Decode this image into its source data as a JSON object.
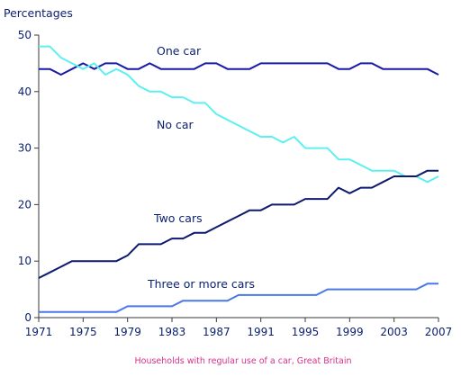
{
  "chart_data": {
    "type": "line",
    "title": "",
    "ylabel": "Percentages",
    "xlabel": "",
    "caption": "Households with regular use of a car, Great Britain",
    "xlim": [
      1971,
      2007
    ],
    "ylim": [
      0,
      50
    ],
    "x_ticks": [
      1971,
      1975,
      1979,
      1983,
      1987,
      1991,
      1995,
      1999,
      2003,
      2007
    ],
    "y_ticks": [
      0,
      10,
      20,
      30,
      40,
      50
    ],
    "grid": false,
    "legend": "inline labels",
    "x": [
      1971,
      1972,
      1973,
      1974,
      1975,
      1976,
      1977,
      1978,
      1979,
      1980,
      1981,
      1982,
      1983,
      1984,
      1985,
      1986,
      1987,
      1988,
      1989,
      1990,
      1991,
      1992,
      1993,
      1994,
      1995,
      1996,
      1997,
      1998,
      1999,
      2000,
      2001,
      2002,
      2003,
      2004,
      2005,
      2006,
      2007
    ],
    "series": [
      {
        "name": "One car",
        "color": "#1a1aa8",
        "values": [
          44,
          44,
          43,
          44,
          45,
          44,
          45,
          45,
          44,
          44,
          45,
          44,
          44,
          44,
          44,
          45,
          45,
          44,
          44,
          44,
          45,
          45,
          45,
          45,
          45,
          45,
          45,
          44,
          44,
          45,
          45,
          44,
          44,
          44,
          44,
          44,
          43
        ]
      },
      {
        "name": "No car",
        "color": "#5ef0f0",
        "values": [
          48,
          48,
          46,
          45,
          44,
          45,
          43,
          44,
          43,
          41,
          40,
          40,
          39,
          39,
          38,
          38,
          36,
          35,
          34,
          33,
          32,
          32,
          31,
          32,
          30,
          30,
          30,
          28,
          28,
          27,
          26,
          26,
          26,
          25,
          25,
          24,
          25
        ]
      },
      {
        "name": "Two cars",
        "color": "#0e1a6e",
        "values": [
          7,
          8,
          9,
          10,
          10,
          10,
          10,
          10,
          11,
          13,
          13,
          13,
          14,
          14,
          15,
          15,
          16,
          17,
          18,
          19,
          19,
          20,
          20,
          20,
          21,
          21,
          21,
          23,
          22,
          23,
          23,
          24,
          25,
          25,
          25,
          26,
          26
        ]
      },
      {
        "name": "Three or more cars",
        "color": "#4a78e8",
        "values": [
          1,
          1,
          1,
          1,
          1,
          1,
          1,
          1,
          2,
          2,
          2,
          2,
          2,
          3,
          3,
          3,
          3,
          3,
          4,
          4,
          4,
          4,
          4,
          4,
          4,
          4,
          5,
          5,
          5,
          5,
          5,
          5,
          5,
          5,
          5,
          6,
          6
        ]
      }
    ]
  }
}
